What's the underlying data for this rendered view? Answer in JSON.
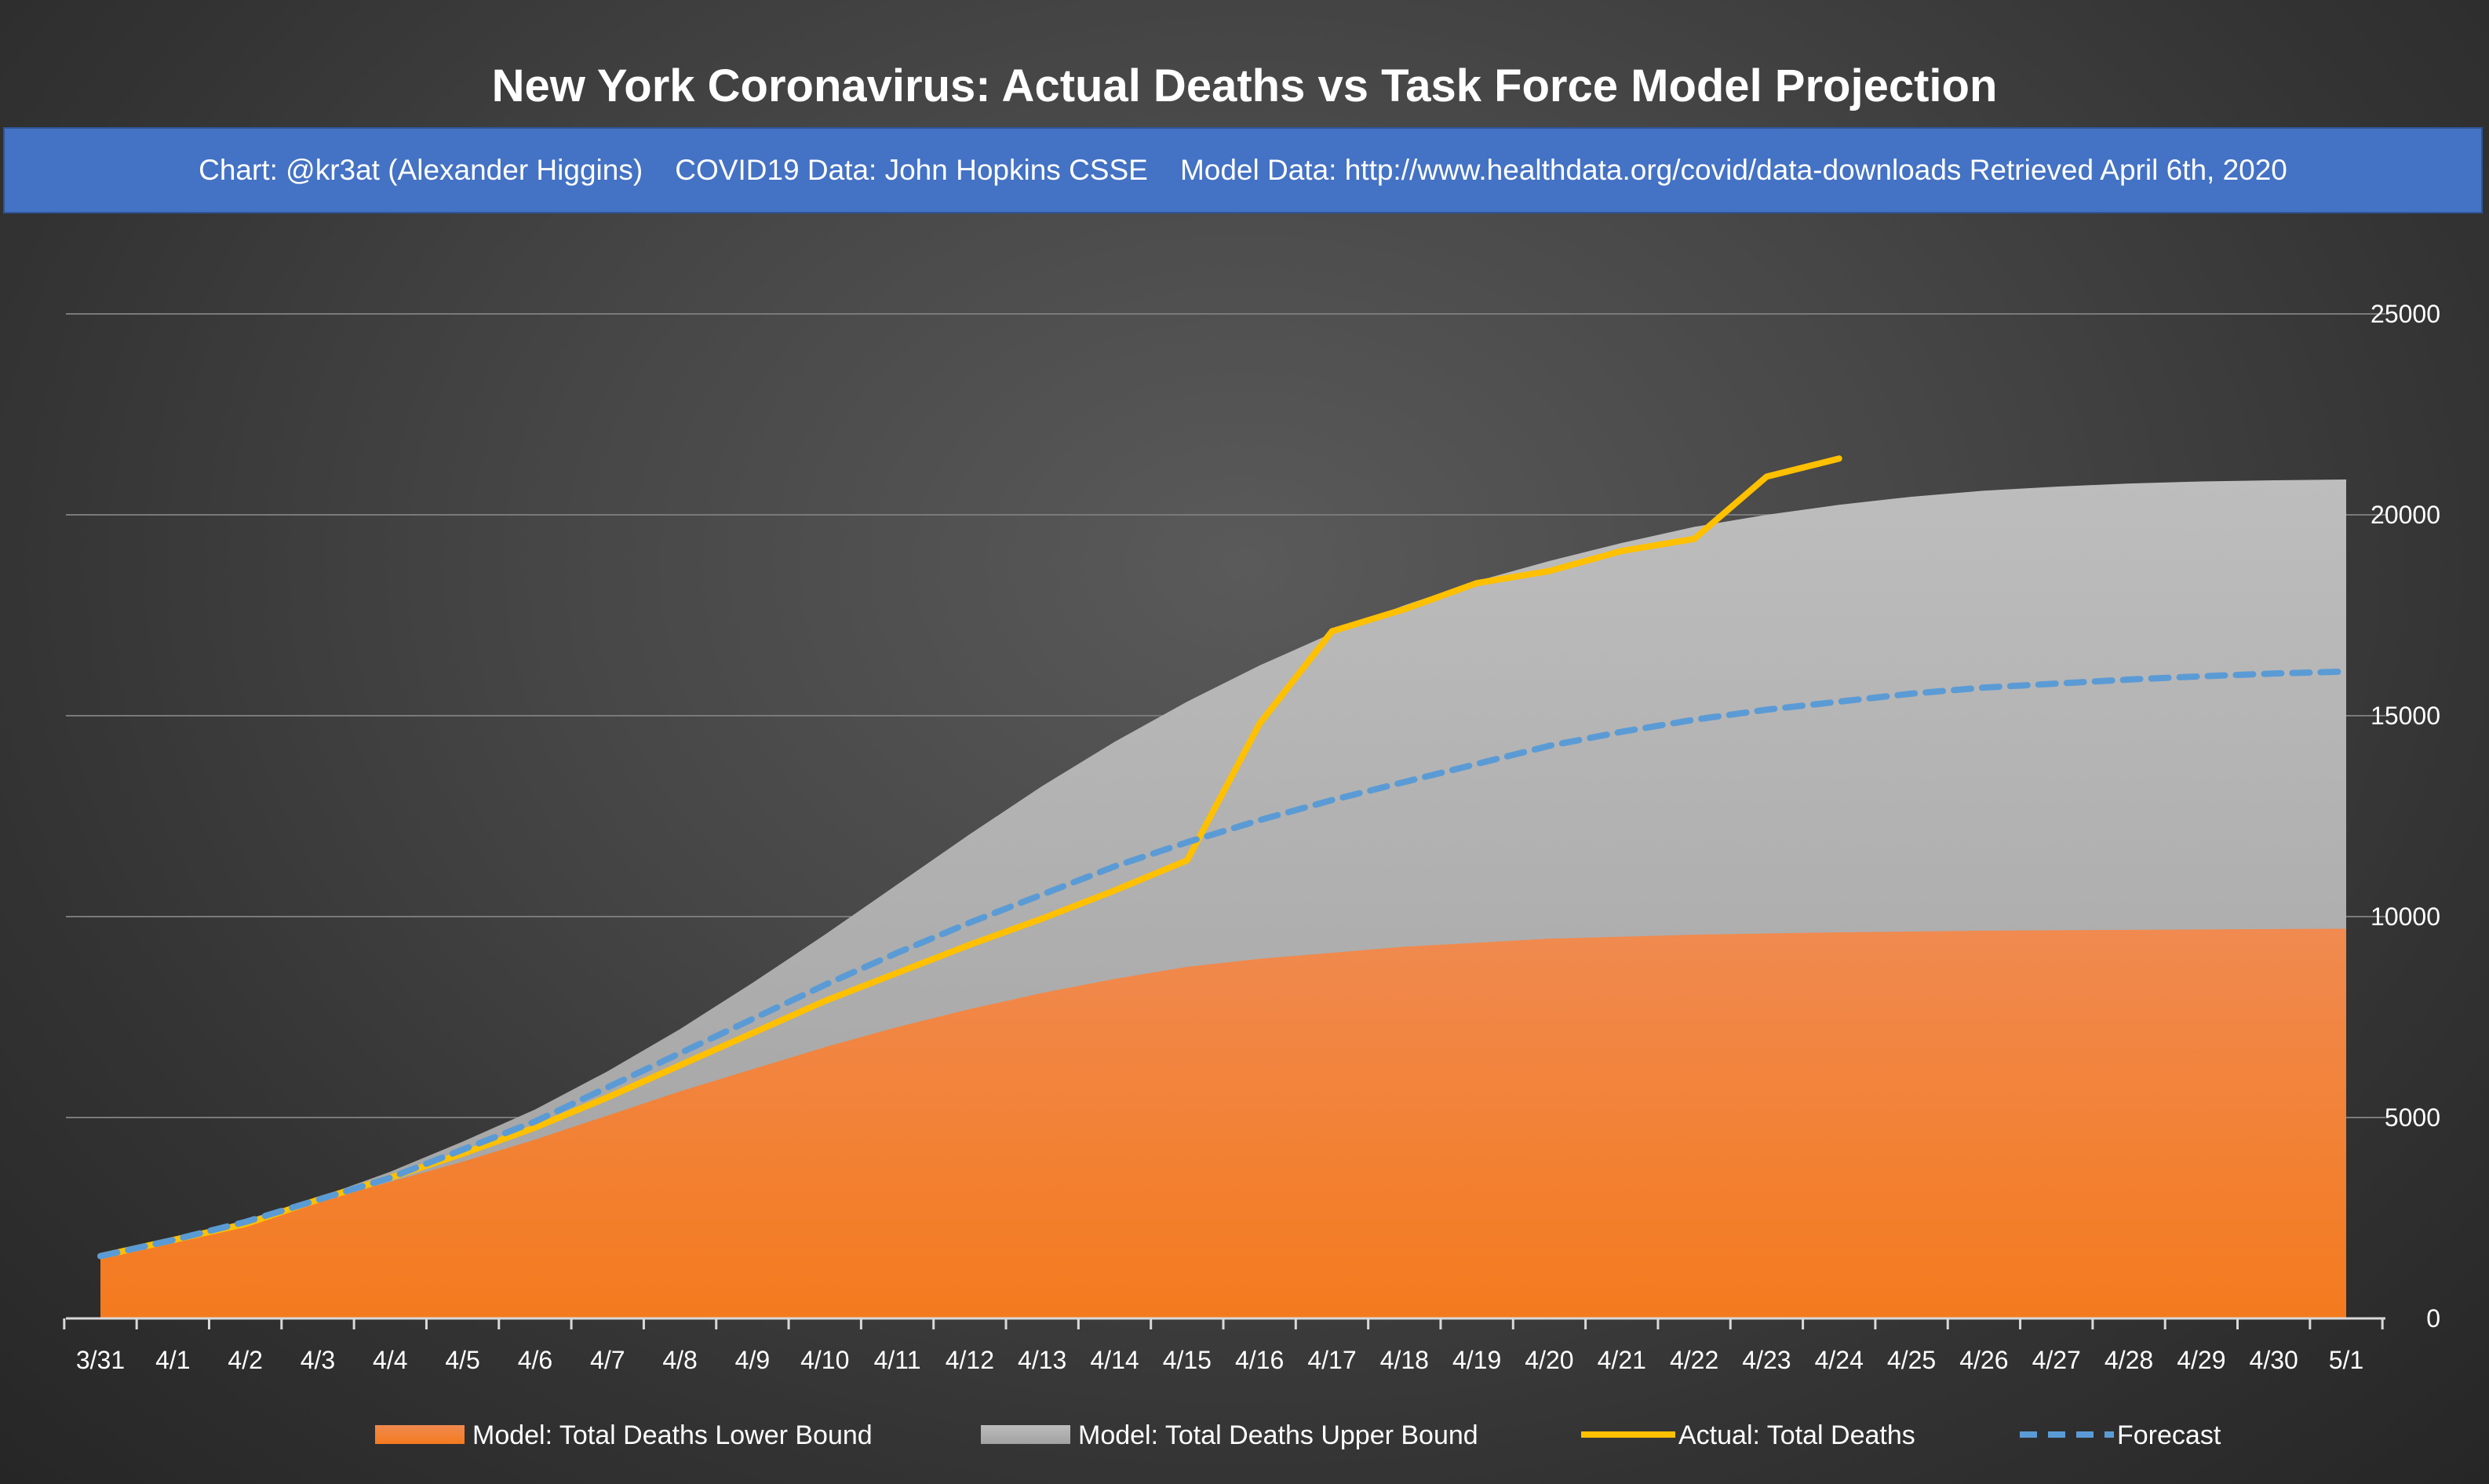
{
  "chart_data": {
    "type": "area",
    "title": "New York Coronavirus: Actual Deaths vs Task Force Model Projection",
    "subtitle": "Chart: @kr3at (Alexander Higgins)    COVID19 Data: John Hopkins CSSE    Model Data: http://www.healthdata.org/covid/data-downloads Retrieved April 6th, 2020",
    "x": [
      "3/31",
      "4/1",
      "4/2",
      "4/3",
      "4/4",
      "4/5",
      "4/6",
      "4/7",
      "4/8",
      "4/9",
      "4/10",
      "4/11",
      "4/12",
      "4/13",
      "4/14",
      "4/15",
      "4/16",
      "4/17",
      "4/18",
      "4/19",
      "4/20",
      "4/21",
      "4/22",
      "4/23",
      "4/24",
      "4/25",
      "4/26",
      "4/27",
      "4/28",
      "4/29",
      "4/30",
      "5/1"
    ],
    "y_axis": {
      "position": "right",
      "ylim": [
        0,
        25000
      ],
      "ticks": [
        0,
        5000,
        10000,
        15000,
        20000,
        25000
      ]
    },
    "grid": true,
    "legend_position": "bottom",
    "series": [
      {
        "name": "Model: Total Deaths Lower Bound",
        "kind": "area",
        "color": "#f07a24",
        "values": [
          1550,
          1950,
          2400,
          2900,
          3400,
          3900,
          4450,
          5050,
          5650,
          6200,
          6750,
          7250,
          7700,
          8100,
          8450,
          8750,
          8950,
          9100,
          9250,
          9350,
          9450,
          9500,
          9550,
          9580,
          9610,
          9630,
          9650,
          9660,
          9670,
          9680,
          9690,
          9700
        ]
      },
      {
        "name": "Model: Total Deaths Upper Bound",
        "kind": "area",
        "color": "#b4b4b4",
        "values": [
          1550,
          1950,
          2450,
          3000,
          3650,
          4400,
          5200,
          6150,
          7200,
          8350,
          9550,
          10800,
          12050,
          13250,
          14350,
          15350,
          16250,
          17050,
          17750,
          18350,
          18850,
          19300,
          19700,
          20000,
          20250,
          20450,
          20600,
          20700,
          20780,
          20830,
          20860,
          20880
        ]
      },
      {
        "name": "Actual: Total Deaths",
        "kind": "line",
        "color": "#ffc000",
        "values": [
          1550,
          1950,
          2350,
          2950,
          3500,
          4100,
          4750,
          5500,
          6300,
          7100,
          7900,
          8600,
          9300,
          9950,
          10650,
          11400,
          14800,
          17100,
          17650,
          18300,
          18600,
          19100,
          19400,
          20950,
          21400,
          null,
          null,
          null,
          null,
          null,
          null,
          null
        ]
      },
      {
        "name": "Forecast",
        "kind": "line",
        "color": "#5b9bd5",
        "dashed": true,
        "values": [
          1550,
          1950,
          2400,
          2950,
          3500,
          4200,
          4900,
          5750,
          6600,
          7450,
          8300,
          9100,
          9850,
          10550,
          11250,
          11850,
          12400,
          12900,
          13350,
          13800,
          14250,
          14600,
          14900,
          15150,
          15350,
          15550,
          15700,
          15800,
          15900,
          15980,
          16050,
          16100
        ]
      }
    ]
  }
}
